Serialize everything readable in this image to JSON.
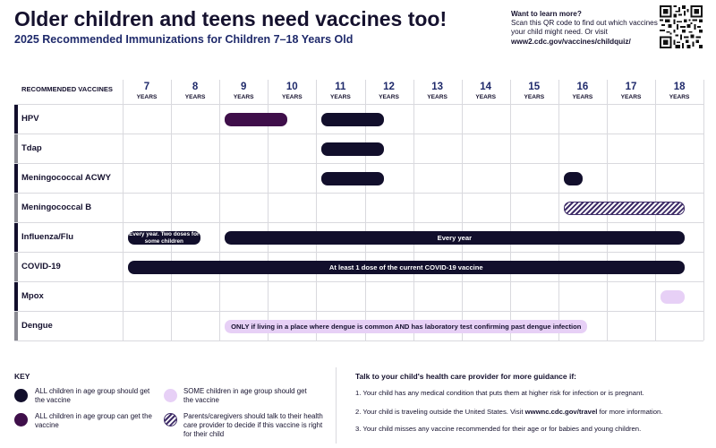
{
  "header": {
    "title": "Older children and teens need vaccines too!",
    "subtitle": "2025 Recommended Immunizations for Children 7–18 Years Old",
    "learn_title": "Want to learn more?",
    "learn_text": "Scan this QR code to find out which vaccines your child might need. Or visit",
    "learn_url": "www2.cdc.gov/vaccines/childquiz/",
    "qr_icon": "qr-code-icon"
  },
  "chart_data": {
    "type": "table",
    "row_header": "RECOMMENDED VACCINES",
    "ages": [
      "7",
      "8",
      "9",
      "10",
      "11",
      "12",
      "13",
      "14",
      "15",
      "16",
      "17",
      "18"
    ],
    "age_unit": "YEARS",
    "vaccines": [
      {
        "name": "HPV",
        "tab_color": "#120f2c",
        "bars": [
          {
            "start": 9,
            "end": 10.4,
            "kind": "can",
            "label": ""
          },
          {
            "start": 11,
            "end": 12.4,
            "kind": "all",
            "label": ""
          }
        ]
      },
      {
        "name": "Tdap",
        "tab_color": "#8a8a92",
        "bars": [
          {
            "start": 11,
            "end": 12.4,
            "kind": "all",
            "label": ""
          }
        ]
      },
      {
        "name": "Meningococcal ACWY",
        "tab_color": "#120f2c",
        "bars": [
          {
            "start": 11,
            "end": 12.4,
            "kind": "all",
            "label": ""
          },
          {
            "start": 16,
            "end": 16.5,
            "kind": "all",
            "label": ""
          }
        ]
      },
      {
        "name": "Meningococcal B",
        "tab_color": "#8a8a92",
        "bars": [
          {
            "start": 16,
            "end": 18.6,
            "kind": "talk",
            "label": ""
          }
        ]
      },
      {
        "name": "Influenza/Flu",
        "tab_color": "#120f2c",
        "bars": [
          {
            "start": 7,
            "end": 8.6,
            "kind": "all",
            "label": "Every year. Two doses for some children"
          },
          {
            "start": 9,
            "end": 18.6,
            "kind": "all",
            "label": "Every year"
          }
        ]
      },
      {
        "name": "COVID-19",
        "tab_color": "#8a8a92",
        "bars": [
          {
            "start": 7,
            "end": 18.6,
            "kind": "all",
            "label": "At least 1 dose of the current COVID-19 vaccine"
          }
        ]
      },
      {
        "name": "Mpox",
        "tab_color": "#120f2c",
        "bars": [
          {
            "start": 18,
            "end": 18.6,
            "kind": "some",
            "label": ""
          }
        ]
      },
      {
        "name": "Dengue",
        "tab_color": "#8a8a92",
        "bars": [
          {
            "start": 9,
            "end": 16.6,
            "kind": "some",
            "label": "ONLY if living in a place where dengue is common AND has laboratory test confirming past dengue infection"
          }
        ]
      }
    ]
  },
  "key": {
    "title": "KEY",
    "items": [
      {
        "kind": "all",
        "text": "ALL children in age group should get the vaccine"
      },
      {
        "kind": "can",
        "text": "ALL children in age group can get the vaccine"
      },
      {
        "kind": "some",
        "text": "SOME children in age group should get the vaccine"
      },
      {
        "kind": "talk",
        "text": "Parents/caregivers should talk to their health care provider to decide if this vaccine is right for their child"
      }
    ]
  },
  "guidance": {
    "title": "Talk to your child's health care provider for more guidance if:",
    "item1": "1. Your child has any medical condition that puts them at higher risk for infection or is pregnant.",
    "item2_pre": "2. Your child is traveling outside the United States. Visit",
    "item2_link": "wwwnc.cdc.gov/travel",
    "item2_post": "for more information.",
    "item3": "3. Your child misses any vaccine recommended for their age or for babies and young children."
  }
}
